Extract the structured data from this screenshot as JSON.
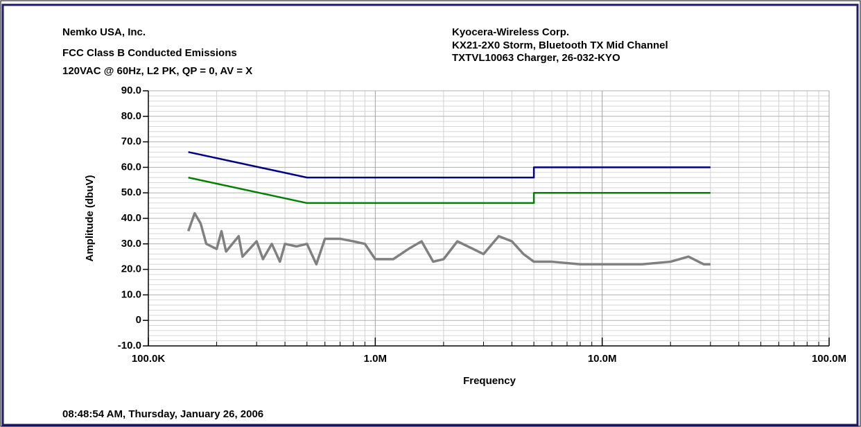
{
  "chart_data": {
    "type": "line",
    "header_left": [
      "Nemko USA, Inc.",
      "FCC Class B Conducted Emissions",
      "120VAC @ 60Hz, L2 PK, QP = 0, AV = X"
    ],
    "header_right": [
      "Kyocera-Wireless Corp.",
      "KX21-2X0 Storm, Bluetooth TX Mid Channel",
      "TXTVL10063 Charger, 26-032-KYO"
    ],
    "footer": "08:48:54 AM, Thursday, January 26, 2006",
    "xlabel": "Frequency",
    "ylabel": "Amplitude (dbuV)",
    "xscale": "log",
    "grid": true,
    "xlim": [
      100000,
      100000000
    ],
    "ylim": [
      -10,
      90
    ],
    "xticks": [
      {
        "value": 100000,
        "label": "100.0K"
      },
      {
        "value": 1000000,
        "label": "1.0M"
      },
      {
        "value": 10000000,
        "label": "10.0M"
      },
      {
        "value": 100000000,
        "label": "100.0M"
      }
    ],
    "xminorticks": [
      200000,
      300000,
      400000,
      500000,
      600000,
      700000,
      800000,
      900000,
      2000000,
      3000000,
      4000000,
      5000000,
      6000000,
      7000000,
      8000000,
      9000000,
      20000000,
      30000000,
      40000000,
      50000000,
      60000000,
      70000000,
      80000000,
      90000000
    ],
    "yticks": [
      {
        "value": -10,
        "label": "-10.0"
      },
      0,
      {
        "value": 10,
        "label": "10.0"
      },
      {
        "value": 20,
        "label": "20.0"
      },
      {
        "value": 30,
        "label": "30.0"
      },
      {
        "value": 40,
        "label": "40.0"
      },
      {
        "value": 50,
        "label": "50.0"
      },
      {
        "value": 60,
        "label": "60.0"
      },
      {
        "value": 70,
        "label": "70.0"
      },
      {
        "value": 80,
        "label": "80.0"
      },
      {
        "value": 90,
        "label": "90.0"
      }
    ],
    "yminorticks": [
      -8,
      -6,
      -4,
      -2,
      2,
      4,
      6,
      8,
      12,
      14,
      16,
      18,
      22,
      24,
      26,
      28,
      32,
      34,
      36,
      38,
      42,
      44,
      46,
      48,
      52,
      54,
      56,
      58,
      62,
      64,
      66,
      68,
      72,
      74,
      76,
      78,
      82,
      84,
      86,
      88
    ],
    "series": [
      {
        "color": "#000080",
        "width": 2.5,
        "x": [
          150000,
          500000,
          5000000,
          5000000,
          30000000
        ],
        "values": [
          66,
          56,
          56,
          60,
          60
        ]
      },
      {
        "color": "#008000",
        "width": 2.5,
        "x": [
          150000,
          500000,
          5000000,
          5000000,
          30000000
        ],
        "values": [
          56,
          46,
          46,
          50,
          50
        ]
      },
      {
        "color": "#808080",
        "width": 3.5,
        "x": [
          150000,
          160000,
          170000,
          180000,
          200000,
          210000,
          220000,
          250000,
          260000,
          300000,
          320000,
          350000,
          380000,
          400000,
          450000,
          500000,
          550000,
          600000,
          700000,
          800000,
          900000,
          1000000,
          1200000,
          1400000,
          1600000,
          1800000,
          2000000,
          2300000,
          2700000,
          3000000,
          3500000,
          4000000,
          4500000,
          5000000,
          6000000,
          8000000,
          10000000,
          15000000,
          20000000,
          24000000,
          28000000,
          30000000
        ],
        "values": [
          35,
          42,
          38,
          30,
          28,
          35,
          27,
          33,
          25,
          31,
          24,
          30,
          23,
          30,
          29,
          30,
          22,
          32,
          32,
          31,
          30,
          24,
          24,
          28,
          31,
          23,
          24,
          31,
          28,
          26,
          33,
          31,
          26,
          23,
          23,
          22,
          22,
          22,
          23,
          25,
          22,
          22
        ]
      }
    ]
  }
}
